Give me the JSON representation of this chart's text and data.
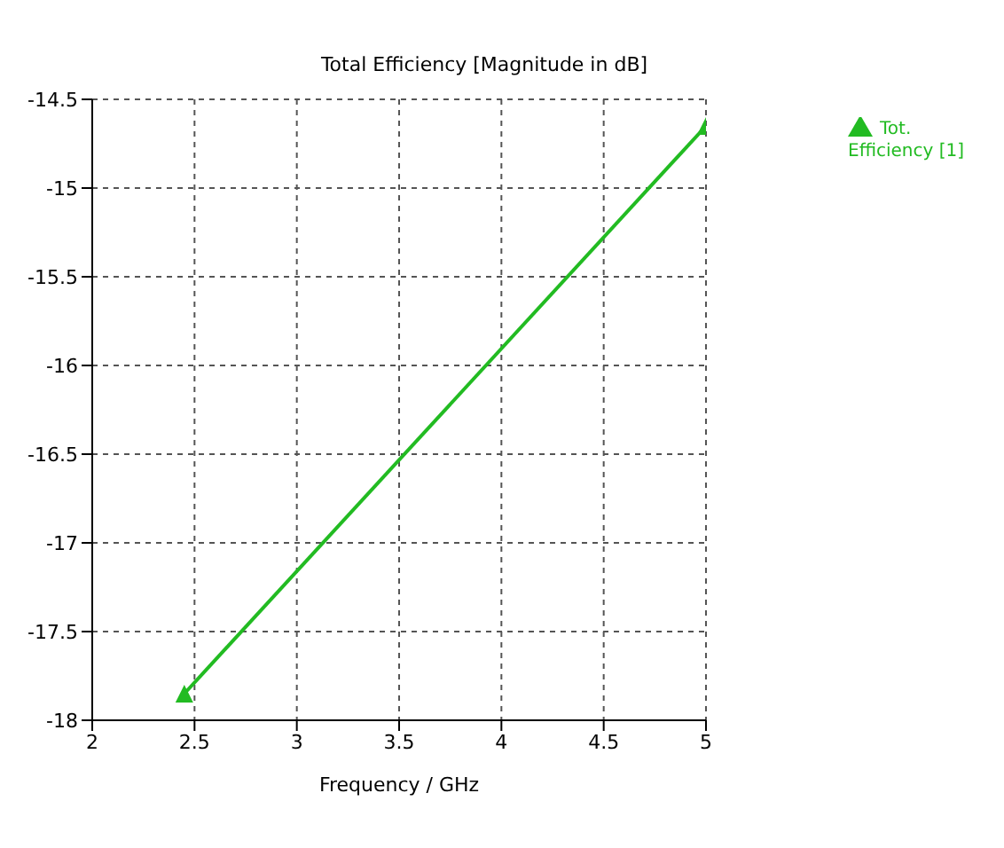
{
  "chart_data": {
    "type": "line",
    "title": "Total Efficiency [Magnitude in dB]",
    "xlabel": "Frequency / GHz",
    "series": [
      {
        "name": "Tot. Efficiency [1]",
        "color": "#22bb22",
        "x": [
          2.45,
          5
        ],
        "values": [
          -17.85,
          -14.65
        ]
      }
    ],
    "xlim": [
      2,
      5
    ],
    "xticks": [
      2,
      2.5,
      3,
      3.5,
      4,
      4.5,
      5
    ],
    "ylim": [
      -18,
      -14.5
    ],
    "yticks": [
      -18,
      -17.5,
      -17,
      -16.5,
      -16,
      -15.5,
      -15,
      -14.5
    ],
    "grid": true,
    "legend": "top right",
    "marker": "triangle",
    "line_style": "solid"
  }
}
